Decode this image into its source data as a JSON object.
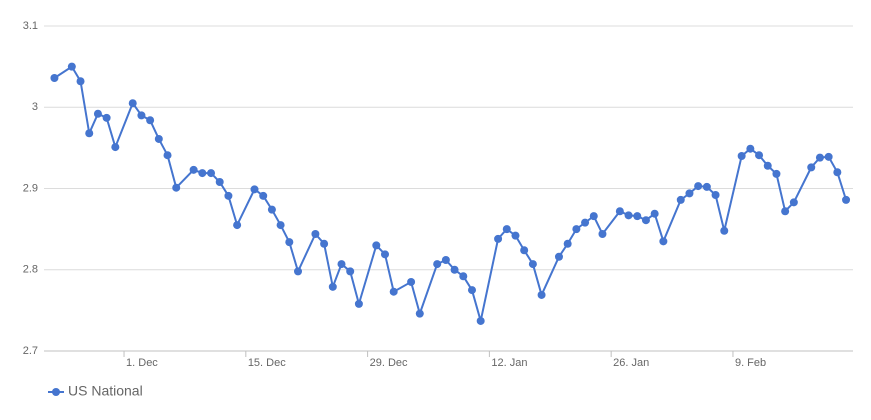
{
  "chart_data": {
    "type": "line",
    "x": [
      "23. Nov",
      "25. Nov",
      "26. Nov",
      "27. Nov",
      "28. Nov",
      "29. Nov",
      "30. Nov",
      "2. Dec",
      "3. Dec",
      "4. Dec",
      "5. Dec",
      "6. Dec",
      "7. Dec",
      "9. Dec",
      "10. Dec",
      "11. Dec",
      "12. Dec",
      "13. Dec",
      "14. Dec",
      "16. Dec",
      "17. Dec",
      "18. Dec",
      "19. Dec",
      "20. Dec",
      "21. Dec",
      "23. Dec",
      "24. Dec",
      "25. Dec",
      "26. Dec",
      "27. Dec",
      "28. Dec",
      "30. Dec",
      "31. Dec",
      "1. Jan",
      "3. Jan",
      "4. Jan",
      "6. Jan",
      "7. Jan",
      "8. Jan",
      "9. Jan",
      "10. Jan",
      "11. Jan",
      "13. Jan",
      "14. Jan",
      "15. Jan",
      "16. Jan",
      "17. Jan",
      "18. Jan",
      "20. Jan",
      "21. Jan",
      "22. Jan",
      "23. Jan",
      "24. Jan",
      "25. Jan",
      "27. Jan",
      "28. Jan",
      "29. Jan",
      "30. Jan",
      "31. Jan",
      "1. Feb",
      "3. Feb",
      "4. Feb",
      "5. Feb",
      "6. Feb",
      "7. Feb",
      "8. Feb",
      "10. Feb",
      "11. Feb",
      "12. Feb",
      "13. Feb",
      "14. Feb",
      "15. Feb",
      "16. Feb",
      "18. Feb",
      "19. Feb",
      "20. Feb",
      "21. Feb",
      "22. Feb"
    ],
    "series": [
      {
        "name": "US National",
        "color": "#4575cf",
        "values": [
          3.036,
          3.05,
          3.032,
          2.968,
          2.992,
          2.987,
          2.951,
          3.005,
          2.99,
          2.984,
          2.961,
          2.941,
          2.901,
          2.923,
          2.919,
          2.919,
          2.908,
          2.891,
          2.855,
          2.899,
          2.891,
          2.874,
          2.855,
          2.834,
          2.798,
          2.844,
          2.832,
          2.779,
          2.807,
          2.798,
          2.758,
          2.83,
          2.819,
          2.773,
          2.785,
          2.746,
          2.807,
          2.812,
          2.8,
          2.792,
          2.775,
          2.737,
          2.838,
          2.85,
          2.842,
          2.824,
          2.807,
          2.769,
          2.816,
          2.832,
          2.85,
          2.858,
          2.866,
          2.844,
          2.872,
          2.867,
          2.866,
          2.861,
          2.869,
          2.835,
          2.886,
          2.894,
          2.903,
          2.902,
          2.892,
          2.848,
          2.94,
          2.949,
          2.941,
          2.928,
          2.918,
          2.872,
          2.883,
          2.926,
          2.938,
          2.939,
          2.92,
          2.886
        ]
      }
    ],
    "xticks": [
      "1. Dec",
      "15. Dec",
      "29. Dec",
      "12. Jan",
      "26. Jan",
      "9. Feb"
    ],
    "ylim": [
      2.7,
      3.1
    ],
    "yticks": [
      2.7,
      2.8,
      2.9,
      3,
      3.1
    ],
    "grid": true,
    "legend": "bottom-left"
  }
}
